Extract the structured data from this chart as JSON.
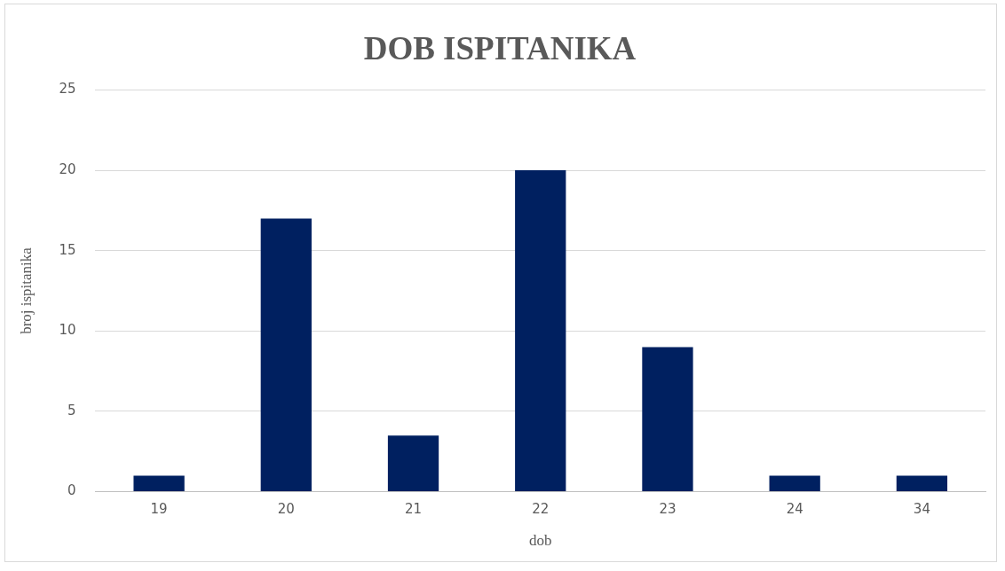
{
  "chart_data": {
    "type": "bar",
    "title": "DOB ISPITANIKA",
    "xlabel": "dob",
    "ylabel": "broj ispitanika",
    "categories": [
      "19",
      "20",
      "21",
      "22",
      "23",
      "24",
      "34"
    ],
    "values": [
      1,
      17,
      3.5,
      20,
      9,
      1,
      1
    ],
    "color": "#002060",
    "ylim": [
      0,
      25
    ],
    "yticks": [
      0,
      5,
      10,
      15,
      20,
      25
    ],
    "grid": "y"
  }
}
